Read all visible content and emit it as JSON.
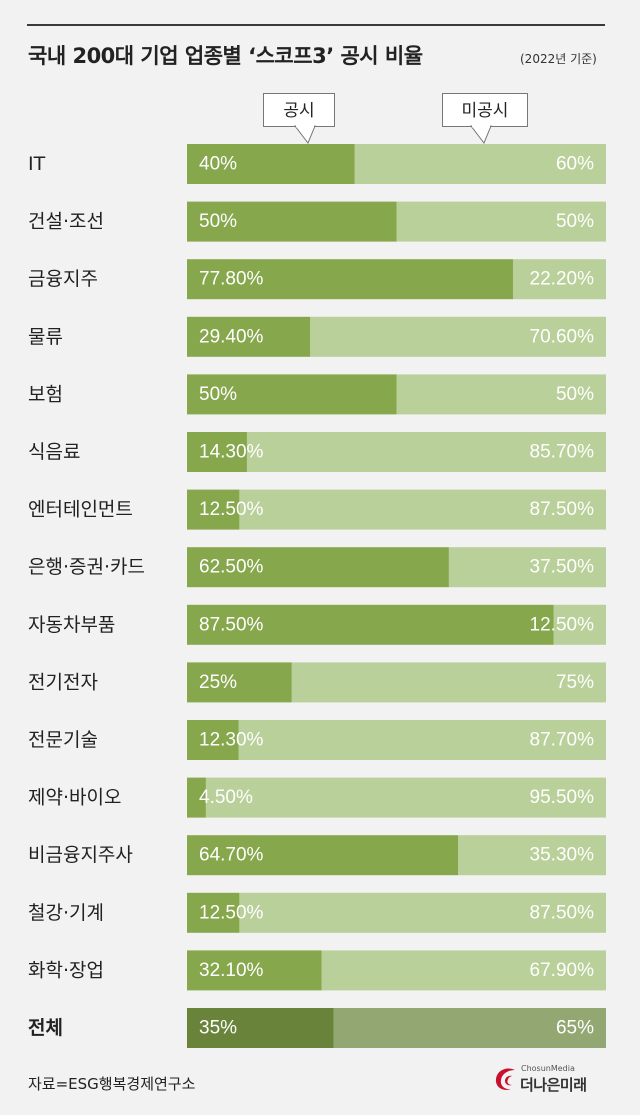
{
  "header": {
    "title": "국내 200대 기업 업종별 ‘스코프3’ 공시 비율",
    "subtitle": "(2022년 기준)"
  },
  "legend": {
    "disclosed": "공시",
    "undisclosed": "미공시"
  },
  "colors": {
    "disclosed": "#86a74c",
    "undisclosed": "#bad09a",
    "total_disclosed": "#6a833a",
    "total_undisclosed": "#93a773",
    "text_on_bar": "#ffffff",
    "logo_red": "#c8102e"
  },
  "chart_data": {
    "type": "bar",
    "orientation": "horizontal",
    "stacked": true,
    "percent": true,
    "title": "국내 200대 기업 업종별 ‘스코프3’ 공시 비율",
    "subtitle": "(2022년 기준)",
    "categories": [
      "IT",
      "건설·조선",
      "금융지주",
      "물류",
      "보험",
      "식음료",
      "엔터테인먼트",
      "은행·증권·카드",
      "자동차부품",
      "전기전자",
      "전문기술",
      "제약·바이오",
      "비금융지주사",
      "철강·기계",
      "화학·장업",
      "전체"
    ],
    "series": [
      {
        "name": "공시",
        "values": [
          40,
          50,
          77.8,
          29.4,
          50,
          14.3,
          12.5,
          62.5,
          87.5,
          25,
          12.3,
          4.5,
          64.7,
          12.5,
          32.1,
          35
        ],
        "labels": [
          "40%",
          "50%",
          "77.80%",
          "29.40%",
          "50%",
          "14.30%",
          "12.50%",
          "62.50%",
          "87.50%",
          "25%",
          "12.30%",
          "4.50%",
          "64.70%",
          "12.50%",
          "32.10%",
          "35%"
        ]
      },
      {
        "name": "미공시",
        "values": [
          60,
          50,
          22.2,
          70.6,
          50,
          85.7,
          87.5,
          37.5,
          12.5,
          75,
          87.7,
          95.5,
          35.3,
          87.5,
          67.9,
          65
        ],
        "labels": [
          "60%",
          "50%",
          "22.20%",
          "70.60%",
          "50%",
          "85.70%",
          "87.50%",
          "37.50%",
          "12.50%",
          "75%",
          "87.70%",
          "95.50%",
          "35.30%",
          "87.50%",
          "67.90%",
          "65%"
        ]
      }
    ],
    "xlim": [
      0,
      100
    ],
    "grid": false,
    "legend_position": "top",
    "highlight_last_category": true
  },
  "footer": {
    "source": "자료=ESG행복경제연구소",
    "logo_small": "ChosunMedia",
    "logo_big": "더나은미래"
  }
}
